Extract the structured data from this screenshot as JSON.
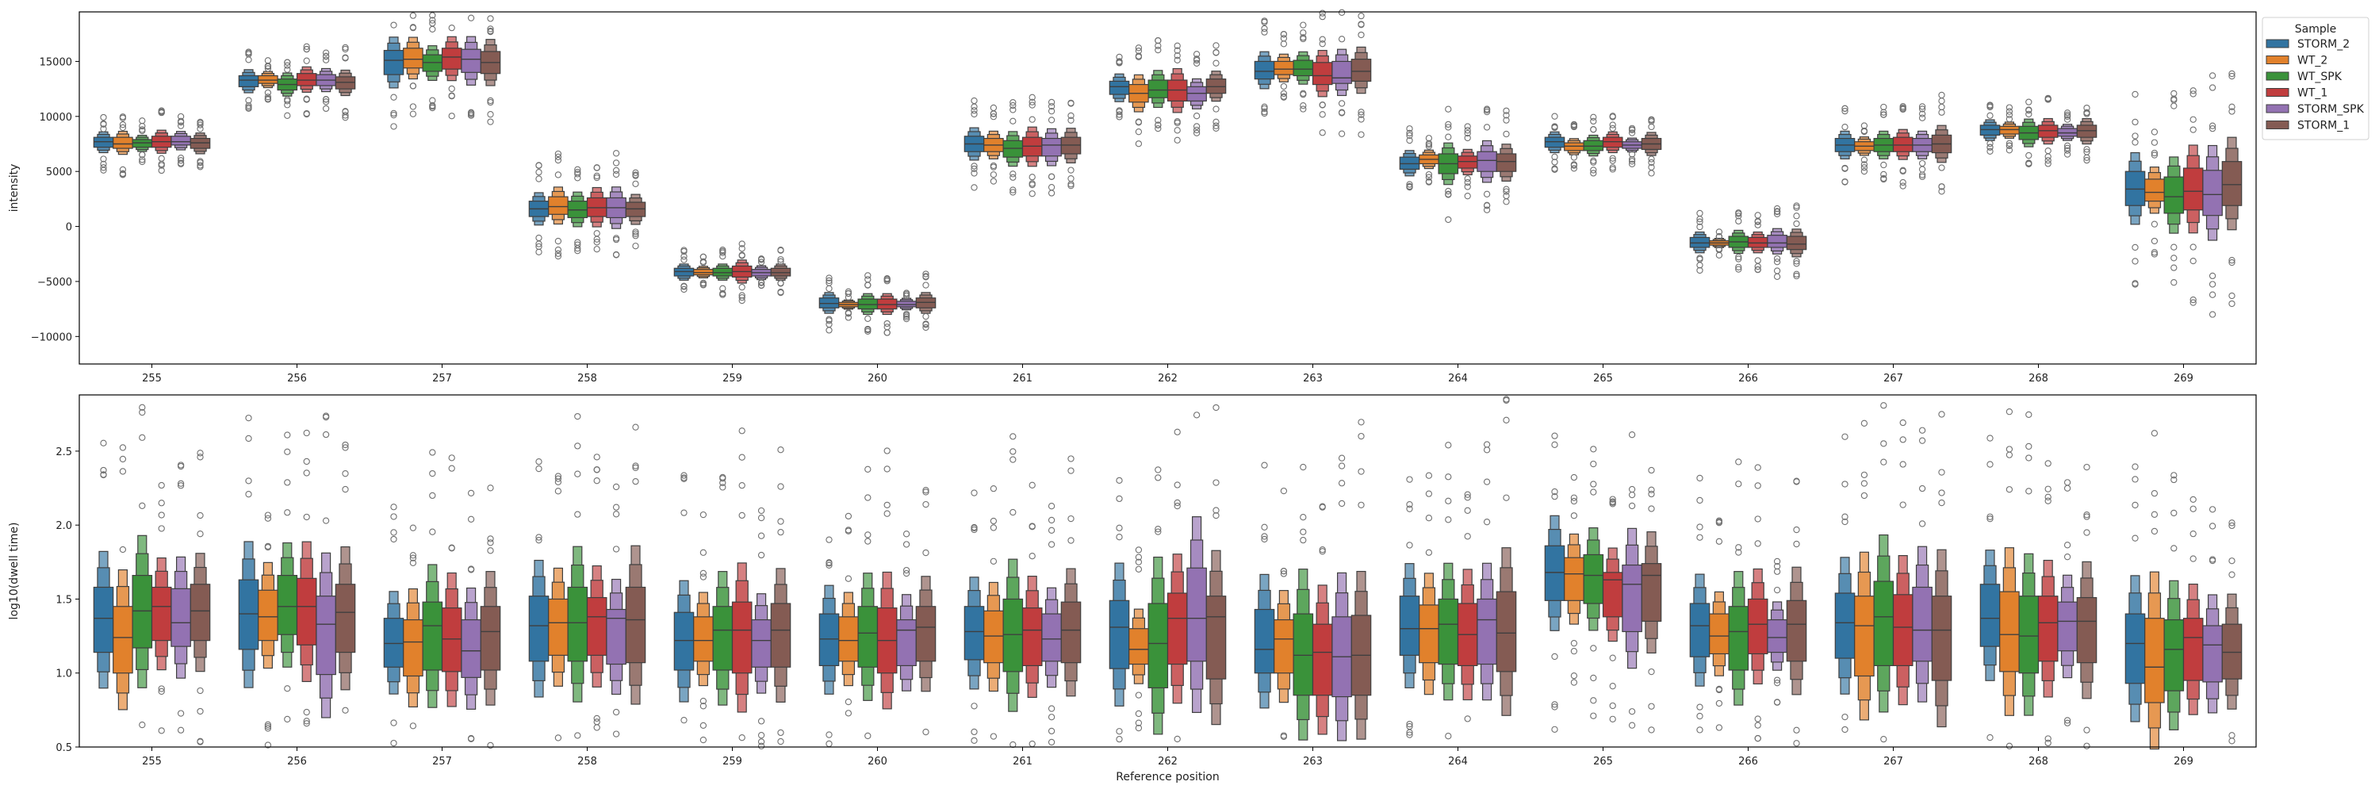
{
  "legend": {
    "title": "Sample",
    "placement": "upper-right-outside",
    "entries": [
      {
        "name": "STORM_2",
        "color": "#3274a1"
      },
      {
        "name": "WT_2",
        "color": "#e1812c"
      },
      {
        "name": "WT_SPK",
        "color": "#3a923a"
      },
      {
        "name": "WT_1",
        "color": "#c03d3e"
      },
      {
        "name": "STORM_SPK",
        "color": "#9372b2"
      },
      {
        "name": "STORM_1",
        "color": "#845b53"
      }
    ]
  },
  "chart_data": [
    {
      "type": "boxen",
      "title": "",
      "xlabel": "",
      "ylabel": "intensity",
      "ylim": [
        -12500,
        19500
      ],
      "yticks": [
        -10000,
        -5000,
        0,
        5000,
        10000,
        15000
      ],
      "ytick_labels": [
        "−10000",
        "−5000",
        "0",
        "5000",
        "10000",
        "15000"
      ],
      "categories": [
        "255",
        "256",
        "257",
        "258",
        "259",
        "260",
        "261",
        "262",
        "263",
        "264",
        "265",
        "266",
        "267",
        "268",
        "269"
      ],
      "grid": false,
      "series": [
        {
          "name": "STORM_2",
          "medians": [
            7700,
            13300,
            15100,
            1600,
            -4100,
            -7000,
            7500,
            12700,
            14100,
            5700,
            7700,
            -1500,
            7400,
            8800,
            3400
          ],
          "iqr": [
            [
              7200,
              8100
            ],
            [
              12700,
              13700
            ],
            [
              13800,
              16000
            ],
            [
              900,
              2300
            ],
            [
              -4500,
              -3800
            ],
            [
              -7400,
              -6500
            ],
            [
              6800,
              8200
            ],
            [
              12000,
              13200
            ],
            [
              13400,
              15000
            ],
            [
              5200,
              6300
            ],
            [
              7200,
              8100
            ],
            [
              -1900,
              -1000
            ],
            [
              6800,
              8000
            ],
            [
              8300,
              9200
            ],
            [
              1900,
              5000
            ]
          ]
        },
        {
          "name": "WT_2",
          "medians": [
            7500,
            13300,
            15200,
            1800,
            -4200,
            -7100,
            7400,
            12100,
            14300,
            6100,
            7300,
            -1500,
            7300,
            8800,
            3100
          ],
          "iqr": [
            [
              7100,
              8100
            ],
            [
              13000,
              13700
            ],
            [
              14400,
              16200
            ],
            [
              1100,
              2700
            ],
            [
              -4400,
              -3900
            ],
            [
              -7300,
              -6900
            ],
            [
              6800,
              8000
            ],
            [
              11300,
              12900
            ],
            [
              13800,
              15000
            ],
            [
              5700,
              6500
            ],
            [
              6900,
              7600
            ],
            [
              -1700,
              -1300
            ],
            [
              6900,
              7700
            ],
            [
              8400,
              9100
            ],
            [
              2300,
              4300
            ]
          ]
        },
        {
          "name": "WT_SPK",
          "medians": [
            7600,
            12900,
            14900,
            1500,
            -4200,
            -7100,
            7100,
            12400,
            14300,
            5700,
            7300,
            -1400,
            7400,
            8500,
            2700
          ],
          "iqr": [
            [
              7200,
              7900
            ],
            [
              12400,
              13400
            ],
            [
              14100,
              15600
            ],
            [
              800,
              2300
            ],
            [
              -4500,
              -3800
            ],
            [
              -7500,
              -6600
            ],
            [
              6300,
              7800
            ],
            [
              11700,
              13300
            ],
            [
              13700,
              15100
            ],
            [
              4800,
              6600
            ],
            [
              6900,
              7800
            ],
            [
              -1900,
              -900
            ],
            [
              6800,
              8000
            ],
            [
              7900,
              9100
            ],
            [
              1200,
              4500
            ]
          ]
        },
        {
          "name": "WT_1",
          "medians": [
            7700,
            13300,
            15400,
            1700,
            -4100,
            -7100,
            7300,
            12400,
            13700,
            5900,
            7700,
            -1500,
            7400,
            8700,
            3200
          ],
          "iqr": [
            [
              7200,
              8200
            ],
            [
              12800,
              13900
            ],
            [
              14300,
              16200
            ],
            [
              900,
              2600
            ],
            [
              -4600,
              -3600
            ],
            [
              -7500,
              -6600
            ],
            [
              6400,
              8100
            ],
            [
              11400,
              13300
            ],
            [
              12900,
              14900
            ],
            [
              5300,
              6400
            ],
            [
              7200,
              8100
            ],
            [
              -1900,
              -1000
            ],
            [
              6800,
              8100
            ],
            [
              8100,
              9200
            ],
            [
              1500,
              5300
            ]
          ]
        },
        {
          "name": "STORM_SPK",
          "medians": [
            7700,
            13300,
            15200,
            1700,
            -4200,
            -7100,
            7400,
            12100,
            13500,
            6000,
            7400,
            -1500,
            7400,
            8500,
            2900
          ],
          "iqr": [
            [
              7400,
              8200
            ],
            [
              12800,
              13800
            ],
            [
              14000,
              16100
            ],
            [
              800,
              2600
            ],
            [
              -4500,
              -3900
            ],
            [
              -7300,
              -6800
            ],
            [
              6400,
              8000
            ],
            [
              11400,
              12700
            ],
            [
              13000,
              15000
            ],
            [
              5000,
              6800
            ],
            [
              7100,
              7700
            ],
            [
              -1900,
              -800
            ],
            [
              6800,
              8000
            ],
            [
              8200,
              8900
            ],
            [
              1000,
              5100
            ]
          ]
        },
        {
          "name": "STORM_1",
          "medians": [
            7600,
            13100,
            14900,
            1600,
            -4200,
            -6900,
            7400,
            12700,
            14100,
            5900,
            7500,
            -1600,
            7500,
            8700,
            3800
          ],
          "iqr": [
            [
              7100,
              8000
            ],
            [
              12500,
              13600
            ],
            [
              13900,
              15900
            ],
            [
              900,
              2200
            ],
            [
              -4500,
              -3800
            ],
            [
              -7400,
              -6500
            ],
            [
              6600,
              8100
            ],
            [
              12100,
              13400
            ],
            [
              13200,
              15200
            ],
            [
              5000,
              6600
            ],
            [
              7000,
              8000
            ],
            [
              -2100,
              -900
            ],
            [
              6700,
              8300
            ],
            [
              8100,
              9200
            ],
            [
              1900,
              5900
            ]
          ]
        }
      ]
    },
    {
      "type": "boxen",
      "title": "",
      "xlabel": "Reference position",
      "ylabel": "log10(dwell time)",
      "ylim": [
        0.5,
        2.88
      ],
      "yticks": [
        0.5,
        1.0,
        1.5,
        2.0,
        2.5
      ],
      "ytick_labels": [
        "0.5",
        "1.0",
        "1.5",
        "2.0",
        "2.5"
      ],
      "categories": [
        "255",
        "256",
        "257",
        "258",
        "259",
        "260",
        "261",
        "262",
        "263",
        "264",
        "265",
        "266",
        "267",
        "268",
        "269"
      ],
      "grid": false,
      "series": [
        {
          "name": "STORM_2",
          "medians": [
            1.37,
            1.4,
            1.2,
            1.32,
            1.22,
            1.23,
            1.28,
            1.31,
            1.16,
            1.3,
            1.68,
            1.32,
            1.34,
            1.37,
            1.2
          ],
          "iqr": [
            [
              1.14,
              1.58
            ],
            [
              1.16,
              1.63
            ],
            [
              1.04,
              1.37
            ],
            [
              1.08,
              1.52
            ],
            [
              1.02,
              1.41
            ],
            [
              1.05,
              1.4
            ],
            [
              1.09,
              1.45
            ],
            [
              1.03,
              1.49
            ],
            [
              1.0,
              1.43
            ],
            [
              1.12,
              1.52
            ],
            [
              1.49,
              1.86
            ],
            [
              1.11,
              1.47
            ],
            [
              1.1,
              1.54
            ],
            [
              1.18,
              1.6
            ],
            [
              0.93,
              1.4
            ]
          ]
        },
        {
          "name": "WT_2",
          "medians": [
            1.24,
            1.38,
            1.21,
            1.34,
            1.22,
            1.22,
            1.25,
            1.16,
            1.23,
            1.3,
            1.67,
            1.25,
            1.32,
            1.26,
            1.04
          ],
          "iqr": [
            [
              1.0,
              1.45
            ],
            [
              1.22,
              1.56
            ],
            [
              0.98,
              1.36
            ],
            [
              1.12,
              1.5
            ],
            [
              1.08,
              1.38
            ],
            [
              1.08,
              1.38
            ],
            [
              1.07,
              1.42
            ],
            [
              1.06,
              1.3
            ],
            [
              1.0,
              1.36
            ],
            [
              1.07,
              1.46
            ],
            [
              1.49,
              1.78
            ],
            [
              1.13,
              1.4
            ],
            [
              0.98,
              1.52
            ],
            [
              1.01,
              1.55
            ],
            [
              0.8,
              1.37
            ]
          ]
        },
        {
          "name": "WT_SPK",
          "medians": [
            1.42,
            1.45,
            1.32,
            1.34,
            1.29,
            1.27,
            1.26,
            1.2,
            1.12,
            1.33,
            1.66,
            1.28,
            1.38,
            1.25,
            1.16
          ],
          "iqr": [
            [
              1.17,
              1.66
            ],
            [
              1.26,
              1.66
            ],
            [
              1.02,
              1.48
            ],
            [
              1.08,
              1.58
            ],
            [
              1.02,
              1.45
            ],
            [
              1.04,
              1.45
            ],
            [
              1.01,
              1.5
            ],
            [
              0.9,
              1.47
            ],
            [
              0.85,
              1.4
            ],
            [
              1.06,
              1.5
            ],
            [
              1.47,
              1.8
            ],
            [
              1.02,
              1.45
            ],
            [
              1.05,
              1.62
            ],
            [
              1.0,
              1.52
            ],
            [
              0.88,
              1.36
            ]
          ]
        },
        {
          "name": "WT_1",
          "medians": [
            1.45,
            1.45,
            1.23,
            1.38,
            1.29,
            1.22,
            1.29,
            1.37,
            1.14,
            1.26,
            1.63,
            1.33,
            1.31,
            1.34,
            1.24
          ],
          "iqr": [
            [
              1.22,
              1.58
            ],
            [
              1.19,
              1.64
            ],
            [
              1.01,
              1.44
            ],
            [
              1.12,
              1.51
            ],
            [
              1.0,
              1.48
            ],
            [
              1.0,
              1.44
            ],
            [
              1.05,
              1.44
            ],
            [
              1.06,
              1.54
            ],
            [
              0.85,
              1.33
            ],
            [
              1.05,
              1.47
            ],
            [
              1.38,
              1.68
            ],
            [
              1.13,
              1.5
            ],
            [
              1.05,
              1.53
            ],
            [
              1.08,
              1.52
            ],
            [
              0.95,
              1.37
            ]
          ]
        },
        {
          "name": "STORM_SPK",
          "medians": [
            1.34,
            1.33,
            1.15,
            1.37,
            1.22,
            1.29,
            1.23,
            1.37,
            1.11,
            1.36,
            1.6,
            1.24,
            1.29,
            1.35,
            1.19
          ],
          "iqr": [
            [
              1.18,
              1.57
            ],
            [
              0.99,
              1.52
            ],
            [
              0.97,
              1.36
            ],
            [
              1.06,
              1.43
            ],
            [
              1.04,
              1.36
            ],
            [
              1.05,
              1.36
            ],
            [
              1.08,
              1.4
            ],
            [
              1.08,
              1.71
            ],
            [
              0.84,
              1.38
            ],
            [
              1.06,
              1.5
            ],
            [
              1.28,
              1.73
            ],
            [
              1.14,
              1.36
            ],
            [
              1.08,
              1.58
            ],
            [
              1.15,
              1.48
            ],
            [
              0.94,
              1.32
            ]
          ]
        },
        {
          "name": "STORM_1",
          "medians": [
            1.42,
            1.41,
            1.28,
            1.36,
            1.29,
            1.31,
            1.29,
            1.38,
            1.12,
            1.27,
            1.66,
            1.33,
            1.29,
            1.35,
            1.14
          ],
          "iqr": [
            [
              1.22,
              1.6
            ],
            [
              1.14,
              1.6
            ],
            [
              1.02,
              1.45
            ],
            [
              1.07,
              1.58
            ],
            [
              1.04,
              1.47
            ],
            [
              1.08,
              1.45
            ],
            [
              1.07,
              1.48
            ],
            [
              0.96,
              1.52
            ],
            [
              0.85,
              1.39
            ],
            [
              1.01,
              1.55
            ],
            [
              1.35,
              1.74
            ],
            [
              1.08,
              1.49
            ],
            [
              0.95,
              1.52
            ],
            [
              1.07,
              1.51
            ],
            [
              0.96,
              1.33
            ]
          ]
        }
      ]
    }
  ]
}
